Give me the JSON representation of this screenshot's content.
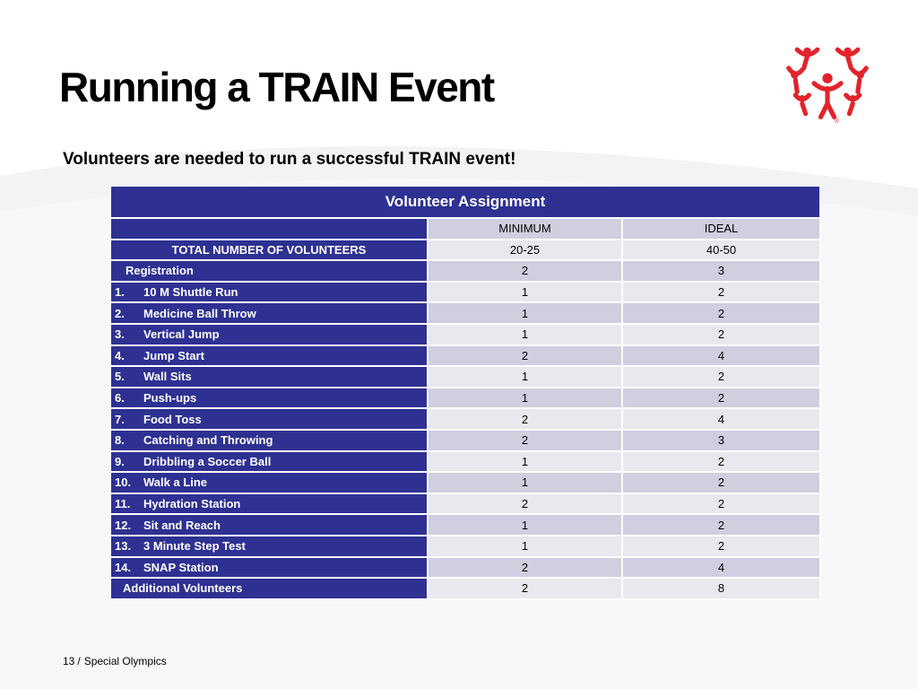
{
  "slide": {
    "title": "Running a TRAIN Event",
    "subtitle": "Volunteers are needed to run a successful TRAIN event!"
  },
  "table": {
    "caption": "Volunteer Assignment",
    "header": {
      "blank": "",
      "minimum": "MINIMUM",
      "ideal": "IDEAL"
    },
    "total": {
      "label": "TOTAL NUMBER OF VOLUNTEERS",
      "minimum": "20-25",
      "ideal": "40-50"
    },
    "registration": {
      "label": "Registration",
      "minimum": "2",
      "ideal": "3"
    },
    "items": [
      {
        "num": "1.",
        "label": "10 M Shuttle Run",
        "minimum": "1",
        "ideal": "2"
      },
      {
        "num": "2.",
        "label": "Medicine Ball Throw",
        "minimum": "1",
        "ideal": "2"
      },
      {
        "num": "3.",
        "label": "Vertical Jump",
        "minimum": "1",
        "ideal": "2"
      },
      {
        "num": "4.",
        "label": "Jump Start",
        "minimum": "2",
        "ideal": "4"
      },
      {
        "num": "5.",
        "label": "Wall Sits",
        "minimum": "1",
        "ideal": "2"
      },
      {
        "num": "6.",
        "label": "Push-ups",
        "minimum": "1",
        "ideal": "2"
      },
      {
        "num": "7.",
        "label": "Food Toss",
        "minimum": "2",
        "ideal": "4"
      },
      {
        "num": "8.",
        "label": "Catching and Throwing",
        "minimum": "2",
        "ideal": "3"
      },
      {
        "num": "9.",
        "label": "Dribbling a Soccer Ball",
        "minimum": "1",
        "ideal": "2"
      },
      {
        "num": "10.",
        "label": "Walk a Line",
        "minimum": "1",
        "ideal": "2"
      },
      {
        "num": "11.",
        "label": "Hydration Station",
        "minimum": "2",
        "ideal": "2"
      },
      {
        "num": "12.",
        "label": "Sit and Reach",
        "minimum": "1",
        "ideal": "2"
      },
      {
        "num": "13.",
        "label": "3 Minute Step Test",
        "minimum": "1",
        "ideal": "2"
      },
      {
        "num": "14.",
        "label": "SNAP Station",
        "minimum": "2",
        "ideal": "4"
      }
    ],
    "additional": {
      "label": "Additional Volunteers",
      "minimum": "2",
      "ideal": "8"
    }
  },
  "footer": {
    "page_number": "13",
    "separator": "/",
    "organization": "Special Olympics"
  },
  "logo": {
    "icon": "special-olympics-logo-icon",
    "mark": "®",
    "color": "#e3232b"
  },
  "colors": {
    "header_navy": "#2e3192",
    "row_dark": "#cfcfe0",
    "row_light": "#e8e8ef"
  }
}
